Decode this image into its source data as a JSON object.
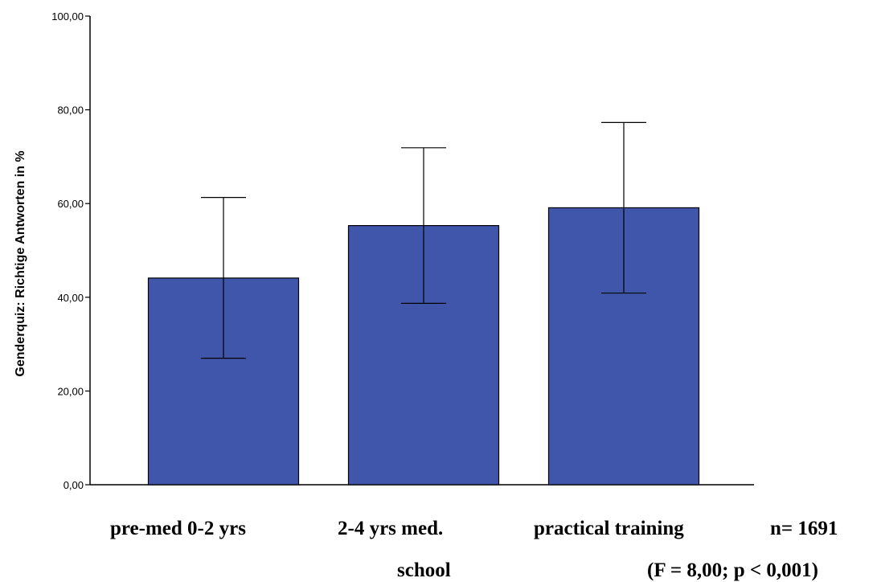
{
  "chart_data": {
    "type": "bar",
    "categories": [
      "pre-med  0-2 yrs",
      "2-4 yrs  med.",
      "practical training"
    ],
    "category_label_line2": [
      "",
      "school",
      ""
    ],
    "values": [
      44.1,
      55.3,
      59.1
    ],
    "error_upper": [
      61.3,
      71.9,
      77.3
    ],
    "error_lower": [
      27.0,
      38.7,
      40.9
    ],
    "ylabel": "Genderquiz: Richtige Antworten in %",
    "xlabel": "",
    "ylim": [
      0,
      100
    ],
    "yticks": [
      "0,00",
      "20,00",
      "40,00",
      "60,00",
      "80,00",
      "100,00"
    ],
    "bar_color": "#3f56aa",
    "grid": false
  },
  "annotations": {
    "n_text": "n= 1691",
    "stats_text": "(F = 8,00; p < 0,001)"
  }
}
